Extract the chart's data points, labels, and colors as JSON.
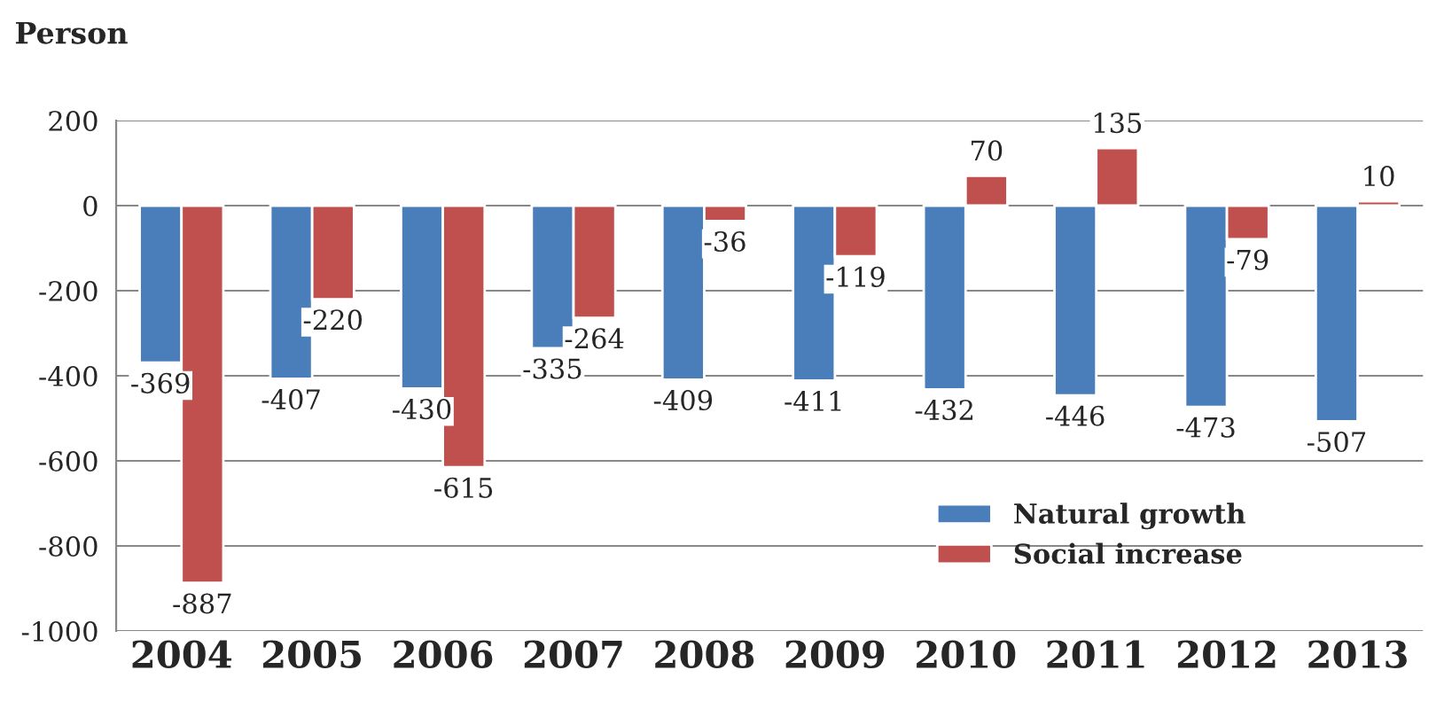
{
  "chart_data": {
    "type": "bar",
    "ylabel": "Person",
    "categories": [
      "2004",
      "2005",
      "2006",
      "2007",
      "2008",
      "2009",
      "2010",
      "2011",
      "2012",
      "2013"
    ],
    "series": [
      {
        "name": "Natural growth",
        "color": "#4a7ebb",
        "values": [
          -369,
          -407,
          -430,
          -335,
          -409,
          -411,
          -432,
          -446,
          -473,
          -507
        ]
      },
      {
        "name": "Social increase",
        "color": "#c0504d",
        "values": [
          -887,
          -220,
          -615,
          -264,
          -36,
          -119,
          70,
          135,
          -79,
          10
        ]
      }
    ],
    "ylim": [
      -1000,
      200
    ],
    "yticks": [
      {
        "value": -1000,
        "label": "-1000"
      },
      {
        "value": -800,
        "label": "-800"
      },
      {
        "value": -600,
        "label": "-600"
      },
      {
        "value": -400,
        "label": "-400"
      },
      {
        "value": -200,
        "label": "-200"
      },
      0,
      200
    ],
    "grid": "y",
    "legend": "bottom right",
    "data_labels": true
  }
}
